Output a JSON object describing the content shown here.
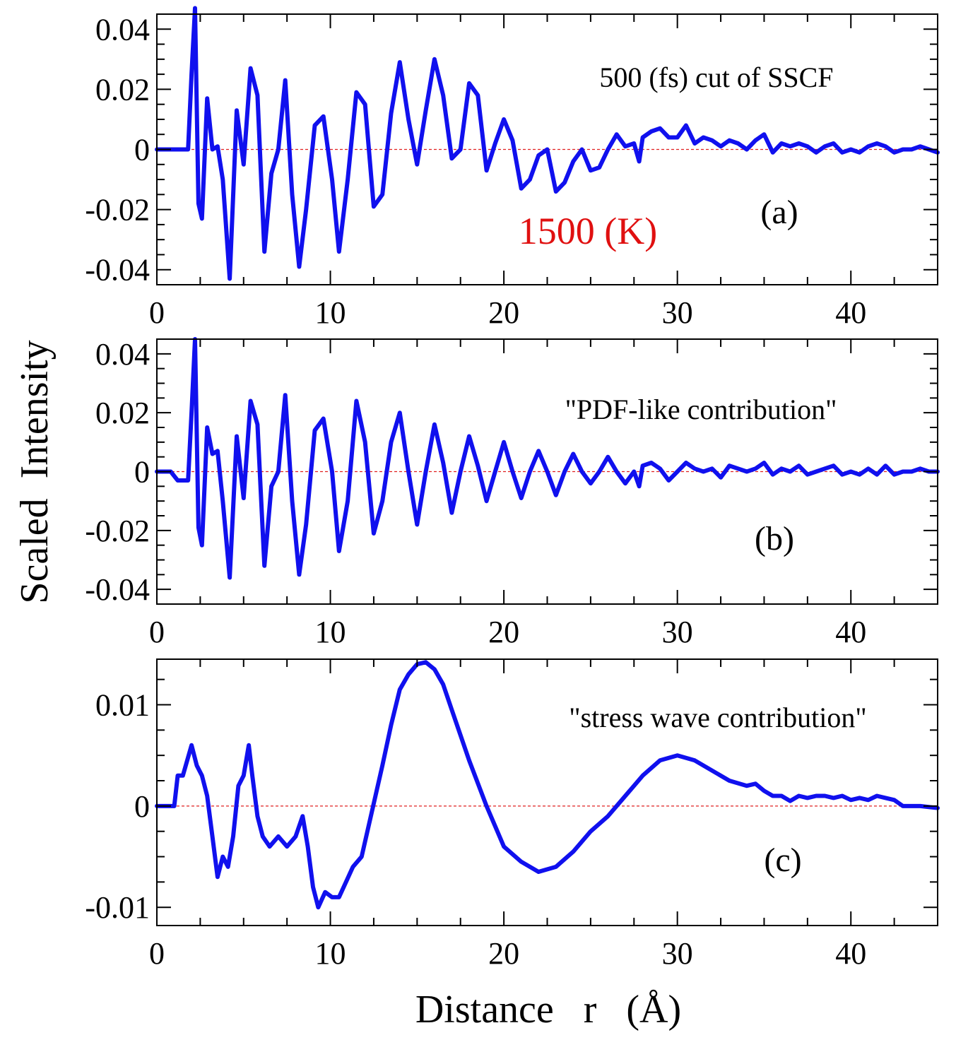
{
  "y_axis_label": "Scaled  Intensity",
  "x_axis_label": "Distance   r   (Å)",
  "temperature_label": "1500 (K)",
  "colors": {
    "series": "#1010ee",
    "zero_line": "#e02020",
    "temperature": "#e01010",
    "axes": "#000000"
  },
  "chart_data": [
    {
      "type": "line",
      "panel": "(a)",
      "annotation": "500 (fs) cut of SSCF",
      "xlim": [
        0,
        45
      ],
      "ylim": [
        -0.045,
        0.045
      ],
      "x_ticks": [
        0,
        10,
        20,
        30,
        40
      ],
      "x_tick_labels": [
        "0",
        "10",
        "20",
        "30",
        "40"
      ],
      "y_ticks": [
        -0.04,
        -0.02,
        0,
        0.02,
        0.04
      ],
      "y_tick_labels": [
        "-0.04",
        "-0.02",
        "0",
        "0.02",
        "0.04"
      ],
      "series": [
        {
          "name": "500 (fs) cut of SSCF",
          "x": [
            0,
            1.8,
            2.0,
            2.2,
            2.4,
            2.6,
            2.9,
            3.2,
            3.5,
            3.8,
            4.2,
            4.6,
            5.0,
            5.4,
            5.8,
            6.2,
            6.6,
            7.0,
            7.4,
            7.8,
            8.2,
            8.6,
            9.1,
            9.6,
            10.1,
            10.5,
            11.0,
            11.5,
            12.0,
            12.5,
            13.0,
            13.5,
            14.0,
            14.5,
            15.0,
            15.5,
            16.0,
            16.5,
            17.0,
            17.5,
            18.0,
            18.5,
            19.0,
            19.5,
            20.0,
            20.5,
            21.0,
            21.5,
            22.0,
            22.5,
            23.0,
            23.5,
            24.0,
            24.5,
            25.0,
            25.5,
            26.0,
            26.5,
            27.0,
            27.5,
            27.8,
            28.0,
            28.5,
            29.0,
            29.5,
            30.0,
            30.5,
            31.0,
            31.5,
            32.0,
            32.5,
            33.0,
            33.5,
            34.0,
            34.5,
            35.0,
            35.5,
            36.0,
            36.5,
            37.0,
            37.5,
            38.0,
            38.5,
            39.0,
            39.5,
            40.0,
            40.5,
            41.0,
            41.5,
            42.0,
            42.5,
            43.0,
            43.5,
            44.0,
            44.5,
            45.0
          ],
          "y": [
            0,
            0,
            0.025,
            0.047,
            -0.018,
            -0.023,
            0.017,
            0.0,
            0.001,
            -0.01,
            -0.043,
            0.013,
            -0.005,
            0.027,
            0.018,
            -0.034,
            -0.008,
            0.0,
            0.023,
            -0.015,
            -0.039,
            -0.02,
            0.008,
            0.011,
            -0.01,
            -0.034,
            -0.01,
            0.019,
            0.015,
            -0.019,
            -0.015,
            0.012,
            0.029,
            0.01,
            -0.005,
            0.013,
            0.03,
            0.018,
            -0.003,
            0.0,
            0.022,
            0.018,
            -0.007,
            0.002,
            0.01,
            0.003,
            -0.013,
            -0.01,
            -0.002,
            0.0,
            -0.014,
            -0.011,
            -0.004,
            0.0,
            -0.007,
            -0.006,
            0.0,
            0.005,
            0.001,
            0.002,
            -0.004,
            0.004,
            0.006,
            0.007,
            0.004,
            0.004,
            0.008,
            0.002,
            0.004,
            0.003,
            0.001,
            0.003,
            0.002,
            0.0,
            0.003,
            0.005,
            -0.001,
            0.002,
            0.001,
            0.002,
            0.001,
            -0.001,
            0.001,
            0.002,
            -0.001,
            0.0,
            -0.001,
            0.001,
            0.002,
            0.001,
            -0.001,
            0.0,
            0.0,
            0.001,
            0.0,
            -0.001
          ]
        }
      ]
    },
    {
      "type": "line",
      "panel": "(b)",
      "annotation": "\"PDF-like contribution\"",
      "xlim": [
        0,
        45
      ],
      "ylim": [
        -0.045,
        0.045
      ],
      "x_ticks": [
        0,
        10,
        20,
        30,
        40
      ],
      "x_tick_labels": [
        "0",
        "10",
        "20",
        "30",
        "40"
      ],
      "y_ticks": [
        -0.04,
        -0.02,
        0,
        0.02,
        0.04
      ],
      "y_tick_labels": [
        "-0.04",
        "-0.02",
        "0",
        "0.02",
        "0.04"
      ],
      "series": [
        {
          "name": "PDF-like contribution",
          "x": [
            0,
            0.8,
            1.2,
            1.8,
            2.0,
            2.2,
            2.4,
            2.6,
            2.9,
            3.2,
            3.5,
            3.8,
            4.2,
            4.6,
            5.0,
            5.4,
            5.8,
            6.2,
            6.6,
            7.0,
            7.4,
            7.8,
            8.2,
            8.6,
            9.1,
            9.6,
            10.1,
            10.5,
            11.0,
            11.5,
            12.0,
            12.5,
            13.0,
            13.5,
            14.0,
            14.5,
            15.0,
            15.5,
            16.0,
            16.5,
            17.0,
            17.5,
            18.0,
            18.5,
            19.0,
            19.5,
            20.0,
            20.5,
            21.0,
            21.5,
            22.0,
            22.5,
            23.0,
            23.5,
            24.0,
            24.5,
            25.0,
            25.5,
            26.0,
            26.5,
            27.0,
            27.5,
            27.8,
            28.0,
            28.5,
            29.0,
            29.5,
            30.0,
            30.5,
            31.0,
            31.5,
            32.0,
            32.5,
            33.0,
            33.5,
            34.0,
            34.5,
            35.0,
            35.5,
            36.0,
            36.5,
            37.0,
            37.5,
            38.0,
            38.5,
            39.0,
            39.5,
            40.0,
            40.5,
            41.0,
            41.5,
            42.0,
            42.5,
            43.0,
            43.5,
            44.0,
            44.5,
            45.0
          ],
          "y": [
            0,
            0,
            -0.003,
            -0.003,
            0.02,
            0.045,
            -0.019,
            -0.025,
            0.015,
            0.006,
            0.007,
            -0.01,
            -0.036,
            0.012,
            -0.009,
            0.024,
            0.016,
            -0.032,
            -0.005,
            0.0,
            0.026,
            -0.01,
            -0.035,
            -0.018,
            0.014,
            0.018,
            0.0,
            -0.027,
            -0.01,
            0.024,
            0.01,
            -0.021,
            -0.01,
            0.01,
            0.02,
            0.0,
            -0.018,
            0.0,
            0.016,
            0.003,
            -0.014,
            0.0,
            0.012,
            0.002,
            -0.01,
            0.0,
            0.01,
            0.0,
            -0.009,
            0.0,
            0.007,
            0.0,
            -0.008,
            0.0,
            0.006,
            0.0,
            -0.004,
            0.0,
            0.005,
            0.0,
            -0.004,
            0.0,
            -0.005,
            0.002,
            0.003,
            0.001,
            -0.003,
            0.0,
            0.003,
            0.001,
            0.0,
            0.001,
            -0.002,
            0.002,
            0.001,
            0.0,
            0.001,
            0.003,
            -0.001,
            0.001,
            0.0,
            0.002,
            -0.001,
            0.0,
            0.001,
            0.002,
            -0.001,
            0.0,
            -0.001,
            0.001,
            -0.001,
            0.002,
            -0.001,
            0.0,
            0.0,
            0.001,
            0.0,
            0.0
          ]
        }
      ]
    },
    {
      "type": "line",
      "panel": "(c)",
      "annotation": "\"stress wave contribution\"",
      "xlim": [
        0,
        45
      ],
      "ylim": [
        -0.0118,
        0.0145
      ],
      "x_ticks": [
        0,
        10,
        20,
        30,
        40
      ],
      "x_tick_labels": [
        "0",
        "10",
        "20",
        "30",
        "40"
      ],
      "y_ticks": [
        -0.01,
        0,
        0.01
      ],
      "y_tick_labels": [
        "-0.01",
        "0",
        "0.01"
      ],
      "series": [
        {
          "name": "stress wave contribution",
          "x": [
            0,
            1.0,
            1.2,
            1.5,
            2.0,
            2.3,
            2.6,
            2.9,
            3.2,
            3.5,
            3.8,
            4.1,
            4.4,
            4.7,
            5.0,
            5.3,
            5.5,
            5.8,
            6.1,
            6.5,
            7.0,
            7.5,
            8.0,
            8.4,
            8.7,
            9.0,
            9.3,
            9.7,
            10.1,
            10.5,
            10.9,
            11.3,
            11.8,
            12.2,
            12.6,
            13.0,
            13.5,
            14.0,
            14.5,
            15.0,
            15.5,
            16.0,
            16.5,
            17.0,
            17.5,
            18.0,
            19.0,
            20.0,
            21.0,
            22.0,
            23.0,
            24.0,
            25.0,
            26.0,
            27.0,
            28.0,
            29.0,
            30.0,
            31.0,
            32.0,
            33.0,
            34.0,
            34.5,
            35.0,
            35.5,
            36.0,
            36.5,
            37.0,
            37.5,
            38.0,
            38.5,
            39.0,
            39.5,
            40.0,
            40.5,
            41.0,
            41.5,
            42.0,
            42.5,
            43.0,
            44.0,
            45.0
          ],
          "y": [
            0,
            0,
            0.003,
            0.003,
            0.006,
            0.004,
            0.003,
            0.001,
            -0.003,
            -0.007,
            -0.005,
            -0.006,
            -0.003,
            0.002,
            0.003,
            0.006,
            0.003,
            -0.001,
            -0.003,
            -0.004,
            -0.003,
            -0.004,
            -0.003,
            -0.001,
            -0.004,
            -0.008,
            -0.01,
            -0.0085,
            -0.009,
            -0.009,
            -0.0075,
            -0.006,
            -0.005,
            -0.002,
            0.001,
            0.004,
            0.008,
            0.0115,
            0.013,
            0.014,
            0.0142,
            0.0135,
            0.012,
            0.0095,
            0.007,
            0.0045,
            0.0,
            -0.004,
            -0.0055,
            -0.0065,
            -0.006,
            -0.0045,
            -0.0025,
            -0.001,
            0.001,
            0.003,
            0.0045,
            0.005,
            0.0045,
            0.0035,
            0.0025,
            0.002,
            0.0022,
            0.0015,
            0.001,
            0.001,
            0.0005,
            0.001,
            0.0008,
            0.001,
            0.001,
            0.0008,
            0.001,
            0.0006,
            0.0008,
            0.0006,
            0.001,
            0.0008,
            0.0006,
            0.0,
            0.0,
            -0.0002
          ]
        }
      ]
    }
  ]
}
